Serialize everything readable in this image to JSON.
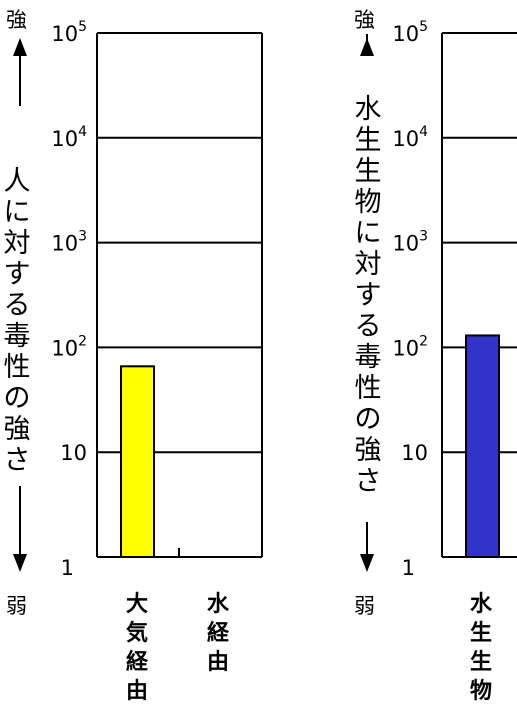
{
  "chart_data": [
    {
      "type": "bar",
      "scale": "log",
      "ylim": [
        1,
        100000
      ],
      "yticks": [
        "1",
        "10",
        "10^2",
        "10^3",
        "10^4",
        "10^5"
      ],
      "ylabel": "人に対する毒性の強さ",
      "strong_label": "強",
      "weak_label": "弱",
      "categories": [
        "大気経由",
        "水経由"
      ],
      "values": [
        66,
        null
      ],
      "colors": [
        "#ffff00",
        "#ffffff"
      ]
    },
    {
      "type": "bar",
      "scale": "log",
      "ylim": [
        1,
        100000
      ],
      "yticks": [
        "1",
        "10",
        "10^2",
        "10^3",
        "10^4",
        "10^5"
      ],
      "ylabel": "水生生物に対する毒性の強さ",
      "strong_label": "強",
      "weak_label": "弱",
      "categories": [
        "水生生物"
      ],
      "values": [
        130
      ],
      "colors": [
        "#3333cc"
      ]
    }
  ]
}
